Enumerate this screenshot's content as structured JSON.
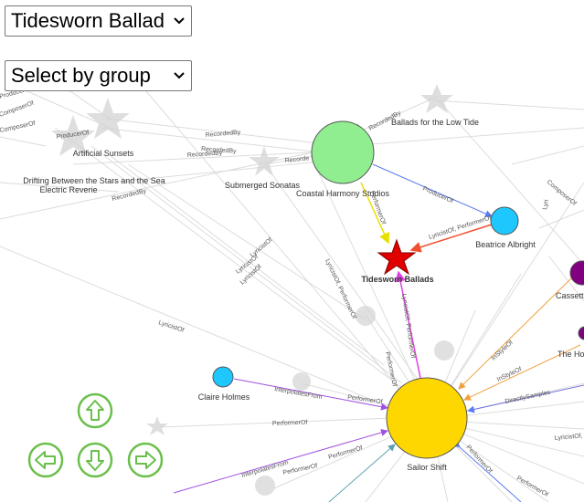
{
  "controls": {
    "node_select_value": "Tidesworn Ballad",
    "group_select_value": "Select by group"
  },
  "colors": {
    "studio_node": "#90ee90",
    "artist_node": "#1ec8ff",
    "focus_node": "#ffd700",
    "star_node": "#e00000",
    "muted_node": "#d3d3d3",
    "purple_node": "#800080",
    "nav_green": "#6abf4b",
    "edge_blue": "#5b7cf0",
    "edge_purple": "#a050e0",
    "edge_orange": "#f0a040",
    "edge_magenta": "#e040e0",
    "edge_yellow": "#f0e000"
  },
  "nodes": {
    "coastal": "Coastal Harmony Studios",
    "beatrice": "Beatrice Albright",
    "tidesworn": "Tidesworn Ballads",
    "claire": "Claire Holmes",
    "sailor": "Sailor Shift",
    "artificial": "Artificial Sunsets",
    "drifting": "Drifting Between the Stars and the Sea",
    "electric": "Electric Reverie",
    "submerged": "Submerged Sonatas",
    "ballads_low_tide": "Ballads for the Low Tide",
    "cassette": "Cassette",
    "the_ho": "The Ho"
  },
  "edge_labels": {
    "producer_of": "ProducerOf",
    "recorded_by": "RecordedBy",
    "lyricist_of": "LyricistOf",
    "performer_of": "PerformerOf",
    "composer_of": "ComposerOf",
    "interpolates_from": "InterpolatesFrom",
    "in_style_of": "InStyleOf",
    "directly_samples": "DirectlySamples",
    "lyricist_performer": "LyricistOf, PerformerOf",
    "lyricist_of_performer": "LyricistOf, PerformerOf",
    "recorded": "Recorde",
    "composer_of_frag": "ComposerOf",
    "lyricist_comma_frag": "LyricistOf,",
    "lyricist_frag": "Lyri"
  },
  "nav": {
    "up": "arrow-up",
    "down": "arrow-down",
    "left": "arrow-left",
    "right": "arrow-right"
  }
}
